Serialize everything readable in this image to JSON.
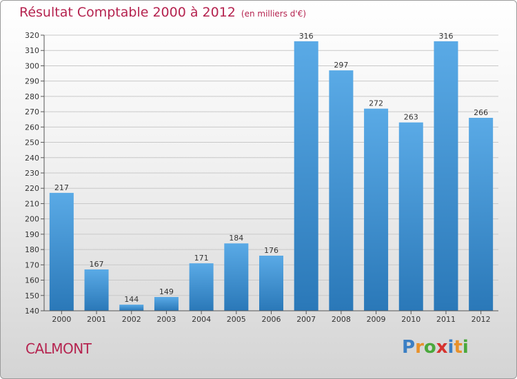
{
  "header": {
    "title": "Résultat Comptable 2000 à 2012",
    "unit": "(en milliers d'€)"
  },
  "commune": "CALMONT",
  "logo": {
    "letters": [
      {
        "ch": "P",
        "color": "#3b7fc4"
      },
      {
        "ch": "r",
        "color": "#e8912a"
      },
      {
        "ch": "o",
        "color": "#4aa83c"
      },
      {
        "ch": "x",
        "color": "#d6332f"
      },
      {
        "ch": "i",
        "color": "#3b7fc4"
      },
      {
        "ch": "t",
        "color": "#e8912a"
      },
      {
        "ch": "i",
        "color": "#4aa83c"
      }
    ]
  },
  "chart_data": {
    "type": "bar",
    "categories": [
      "2000",
      "2001",
      "2002",
      "2003",
      "2004",
      "2005",
      "2006",
      "2007",
      "2008",
      "2009",
      "2010",
      "2011",
      "2012"
    ],
    "values": [
      217,
      167,
      144,
      149,
      171,
      184,
      176,
      316,
      297,
      272,
      263,
      316,
      266
    ],
    "title": "Résultat Comptable 2000 à 2012",
    "subtitle": "(en milliers d'€)",
    "ylim": [
      140,
      320
    ],
    "yticks": [
      140,
      150,
      160,
      170,
      180,
      190,
      200,
      210,
      220,
      230,
      240,
      250,
      260,
      270,
      280,
      290,
      300,
      310,
      320
    ],
    "grid": true,
    "bar_color_top": "#5aaae6",
    "bar_color_bottom": "#2a78b8"
  }
}
